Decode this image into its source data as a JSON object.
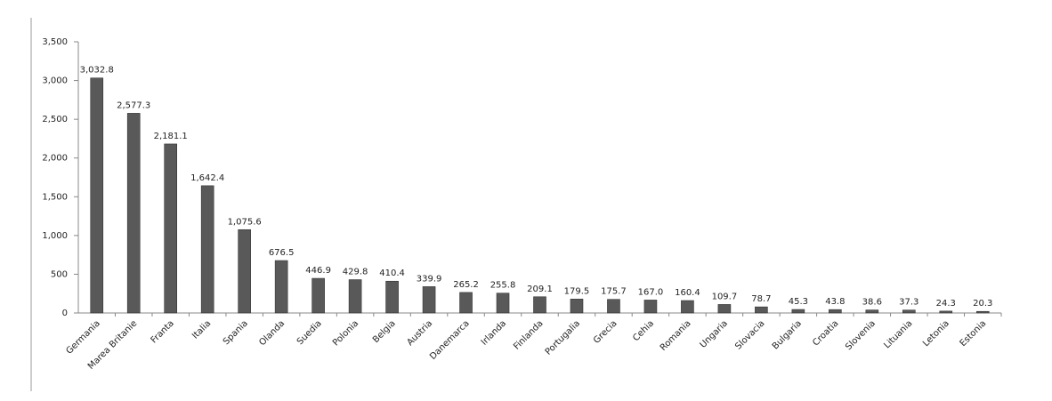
{
  "chart_data": {
    "type": "bar",
    "categories": [
      "Germania",
      "Marea Britanie",
      "Franta",
      "Italia",
      "Spania",
      "Olanda",
      "Suedia",
      "Polonia",
      "Belgia",
      "Austria",
      "Danemarca",
      "Irlanda",
      "Finlanda",
      "Portugalia",
      "Grecia",
      "Cehia",
      "Romania",
      "Ungaria",
      "Slovacia",
      "Bulgaria",
      "Croatia",
      "Slovenia",
      "Lituania",
      "Letonia",
      "Estonia"
    ],
    "values": [
      3032.8,
      2577.3,
      2181.1,
      1642.4,
      1075.6,
      676.5,
      446.9,
      429.8,
      410.4,
      339.9,
      265.2,
      255.8,
      209.1,
      179.5,
      175.7,
      167.0,
      160.4,
      109.7,
      78.7,
      45.3,
      43.8,
      38.6,
      37.3,
      24.3,
      20.3
    ],
    "value_labels": [
      "3,032.8",
      "2,577.3",
      "2,181.1",
      "1,642.4",
      "1,075.6",
      "676.5",
      "446.9",
      "429.8",
      "410.4",
      "339.9",
      "265.2",
      "255.8",
      "209.1",
      "179.5",
      "175.7",
      "167.0",
      "160.4",
      "109.7",
      "78.7",
      "45.3",
      "43.8",
      "38.6",
      "37.3",
      "24.3",
      "20.3"
    ],
    "color": "#595959",
    "ylim": [
      0,
      3500
    ],
    "yticks": [
      0,
      500,
      {
        "value": 1000,
        "label": "1,000"
      },
      {
        "value": 1500,
        "label": "1,500"
      },
      {
        "value": 2000,
        "label": "2,000"
      },
      {
        "value": 2500,
        "label": "2,500"
      },
      {
        "value": 3000,
        "label": "3,000"
      },
      {
        "value": 3500,
        "label": "3,500"
      }
    ],
    "grid": false
  }
}
